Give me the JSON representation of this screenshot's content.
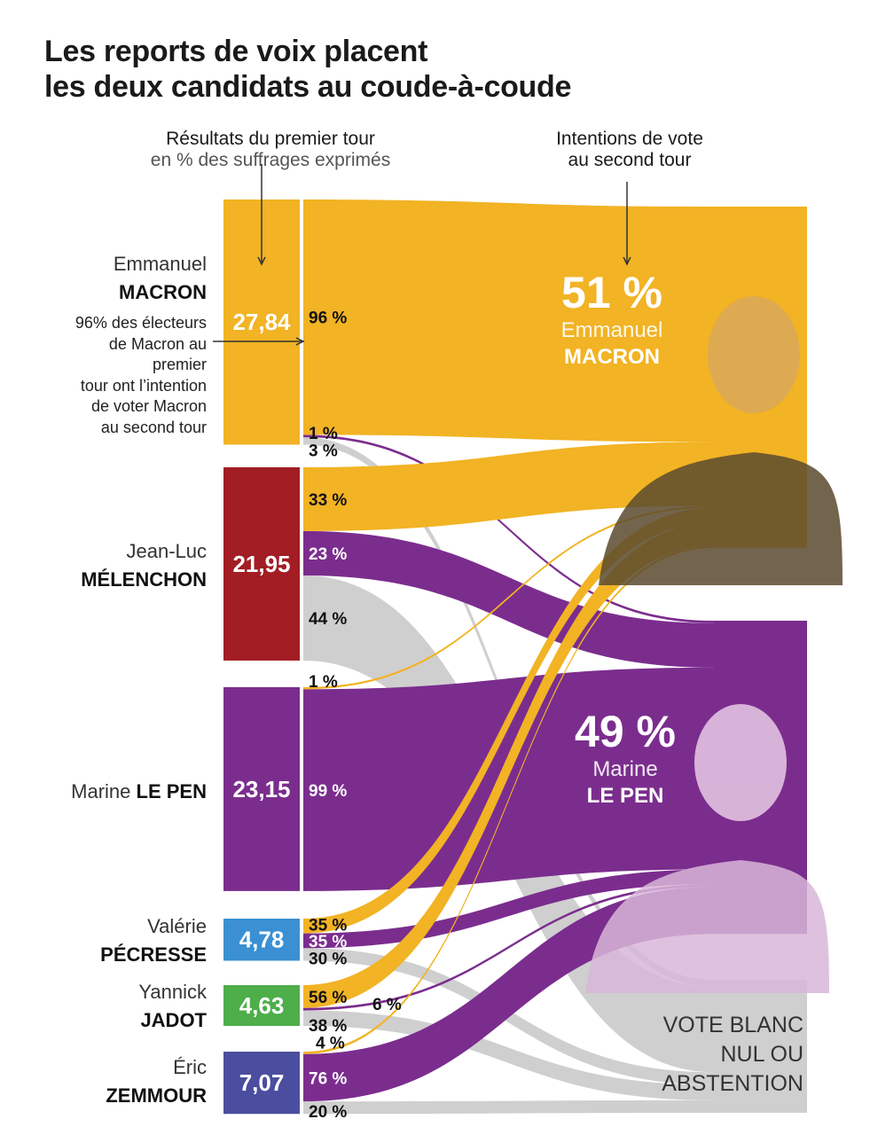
{
  "header": {
    "title_line1": "Les reports de voix placent",
    "title_line2": "les deux candidats au coude-à-coude",
    "left_sub_1": "Résultats du premier tour",
    "left_sub_2": "en % des suffrages exprimés",
    "right_sub_1": "Intentions de vote",
    "right_sub_2": "au second tour"
  },
  "annotation": [
    "96% des électeurs",
    "de Macron au",
    "premier",
    "tour ont l’intention",
    "de voter Macron",
    "au second tour"
  ],
  "colors": {
    "macron": "#F2B324",
    "lepen": "#7B2D8E",
    "blanc": "#CFCFCF",
    "melenchon": "#A21D24",
    "pecresse": "#3A90D2",
    "jadot": "#4DAE4A",
    "zemmour": "#4B4E9E"
  },
  "chart_data": {
    "type": "sankey",
    "sources": [
      {
        "id": "macron",
        "first": "Emmanuel",
        "last": "MACRON",
        "value": 27.84,
        "value_label": "27,84",
        "color": "#F2B324",
        "flows": [
          {
            "to": "macron",
            "pct": 96,
            "label": "96 %"
          },
          {
            "to": "lepen",
            "pct": 1,
            "label": "1 %"
          },
          {
            "to": "blanc",
            "pct": 3,
            "label": "3 %"
          }
        ]
      },
      {
        "id": "melenchon",
        "first": "Jean-Luc",
        "last": "MÉLENCHON",
        "value": 21.95,
        "value_label": "21,95",
        "color": "#A21D24",
        "flows": [
          {
            "to": "macron",
            "pct": 33,
            "label": "33 %"
          },
          {
            "to": "lepen",
            "pct": 23,
            "label": "23 %"
          },
          {
            "to": "blanc",
            "pct": 44,
            "label": "44 %"
          }
        ]
      },
      {
        "id": "lepen",
        "first": "Marine",
        "last": "LE PEN",
        "value": 23.15,
        "value_label": "23,15",
        "color": "#7B2D8E",
        "flows": [
          {
            "to": "macron",
            "pct": 1,
            "label": "1 %"
          },
          {
            "to": "lepen",
            "pct": 99,
            "label": "99 %"
          }
        ]
      },
      {
        "id": "pecresse",
        "first": "Valérie",
        "last": "PÉCRESSE",
        "value": 4.78,
        "value_label": "4,78",
        "color": "#3A90D2",
        "flows": [
          {
            "to": "macron",
            "pct": 35,
            "label": "35 %"
          },
          {
            "to": "lepen",
            "pct": 35,
            "label": "35 %"
          },
          {
            "to": "blanc",
            "pct": 30,
            "label": "30 %"
          }
        ]
      },
      {
        "id": "jadot",
        "first": "Yannick",
        "last": "JADOT",
        "value": 4.63,
        "value_label": "4,63",
        "color": "#4DAE4A",
        "flows": [
          {
            "to": "macron",
            "pct": 56,
            "label": "56 %"
          },
          {
            "to": "lepen",
            "pct": 6,
            "label": "6 %"
          },
          {
            "to": "blanc",
            "pct": 38,
            "label": "38 %"
          }
        ]
      },
      {
        "id": "zemmour",
        "first": "Éric",
        "last": "ZEMMOUR",
        "value": 7.07,
        "value_label": "7,07",
        "color": "#4B4E9E",
        "flows": [
          {
            "to": "macron",
            "pct": 4,
            "label": "4 %"
          },
          {
            "to": "lepen",
            "pct": 76,
            "label": "76 %"
          },
          {
            "to": "blanc",
            "pct": 20,
            "label": "20 %"
          }
        ]
      }
    ],
    "targets": {
      "macron": {
        "pct_label": "51 %",
        "first": "Emmanuel",
        "last": "MACRON",
        "color": "#F2B324"
      },
      "lepen": {
        "pct_label": "49 %",
        "first": "Marine",
        "last": "LE PEN",
        "color": "#7B2D8E"
      },
      "blanc": {
        "lines": [
          "VOTE BLANC",
          "NUL OU",
          "ABSTENTION"
        ],
        "color": "#CFCFCF"
      }
    }
  }
}
